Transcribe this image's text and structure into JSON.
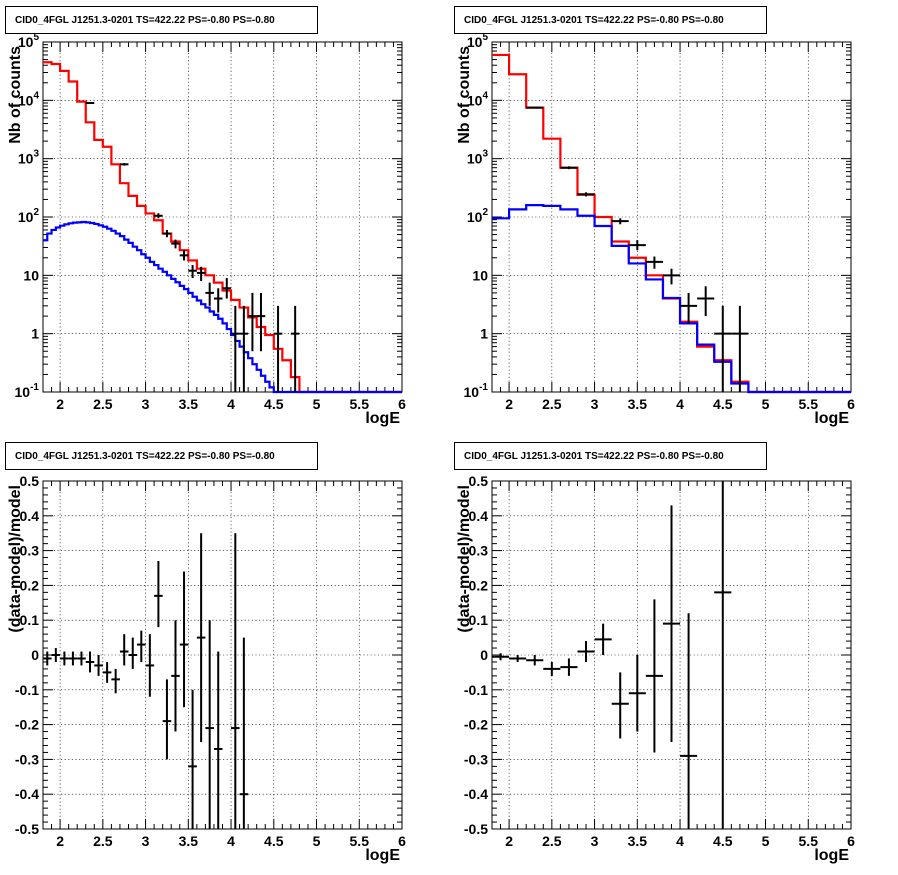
{
  "chart_data": [
    {
      "type": "line",
      "title": "CID0_4FGL J1251.3-0201 TS=422.22 PS=-0.80 PS=-0.80",
      "xlabel": "logE",
      "ylabel": "Nb of counts",
      "yscale": "log",
      "xlim": [
        1.8,
        6.0
      ],
      "ylim": [
        0.1,
        100000
      ],
      "grid": true,
      "x_ticks": [
        "2",
        "2.5",
        "3",
        "3.5",
        "4",
        "4.5",
        "5",
        "5.5",
        "6"
      ],
      "y_ticks": [
        "10^-1",
        "1",
        "10",
        "10^2",
        "10^3",
        "10^4",
        "10^5"
      ],
      "bin_width": 0.1,
      "series": [
        {
          "color": "#ff0000",
          "kind": "step",
          "x": [
            1.85,
            1.95,
            2.05,
            2.15,
            2.25,
            2.35,
            2.45,
            2.55,
            2.65,
            2.75,
            2.85,
            2.95,
            3.05,
            3.15,
            3.25,
            3.35,
            3.45,
            3.55,
            3.65,
            3.75,
            3.85,
            3.95,
            4.05,
            4.15,
            4.25,
            4.35,
            4.45,
            4.55,
            4.65,
            4.75,
            4.85,
            4.95,
            5.05,
            5.15,
            5.25,
            5.35,
            5.45,
            5.55,
            5.65,
            5.75,
            5.85,
            5.95
          ],
          "y": [
            45000,
            42000,
            32000,
            21000,
            9500,
            4200,
            2100,
            1600,
            800,
            380,
            230,
            155,
            115,
            88,
            52,
            38,
            27,
            18,
            13,
            10,
            7.5,
            5.5,
            3.8,
            2.8,
            1.9,
            1.3,
            0.95,
            0.55,
            0.35,
            0.18,
            0.1,
            0.1,
            0.1,
            0.1,
            0.1,
            0.1,
            0.1,
            0.1,
            0.1,
            0.1,
            0.1,
            0.1
          ]
        },
        {
          "color": "#0000ff",
          "kind": "step",
          "x": [
            1.825,
            1.875,
            1.925,
            1.975,
            2.025,
            2.075,
            2.125,
            2.175,
            2.225,
            2.275,
            2.325,
            2.375,
            2.425,
            2.475,
            2.525,
            2.575,
            2.625,
            2.675,
            2.725,
            2.775,
            2.825,
            2.875,
            2.925,
            2.975,
            3.025,
            3.075,
            3.125,
            3.175,
            3.225,
            3.275,
            3.325,
            3.375,
            3.425,
            3.475,
            3.525,
            3.575,
            3.625,
            3.675,
            3.725,
            3.775,
            3.825,
            3.875,
            3.925,
            3.975,
            4.025,
            4.075,
            4.125,
            4.175,
            4.225,
            4.275,
            4.325,
            4.375,
            4.425,
            4.475,
            4.525,
            4.575,
            4.625,
            4.675,
            4.725,
            4.775,
            4.825,
            4.875,
            4.925,
            4.975,
            5.025,
            5.075,
            5.125,
            5.175,
            5.225,
            5.275,
            5.325,
            5.375,
            5.425,
            5.475,
            5.525,
            5.575,
            5.625,
            5.675,
            5.725,
            5.775,
            5.825,
            5.875,
            5.925,
            5.975
          ],
          "y": [
            40,
            52,
            60,
            66,
            71,
            75,
            78,
            80,
            81,
            82,
            81,
            79,
            76,
            72,
            68,
            63,
            58,
            52,
            47,
            41,
            36,
            31,
            27,
            23,
            20,
            17,
            15,
            13,
            11.5,
            10,
            8.7,
            7.6,
            6.6,
            5.8,
            5,
            4.3,
            3.7,
            3.2,
            2.8,
            2.4,
            2.1,
            1.8,
            1.5,
            1.2,
            0.95,
            0.75,
            0.6,
            0.48,
            0.38,
            0.3,
            0.24,
            0.19,
            0.15,
            0.12,
            0.1,
            0.1,
            0.1,
            0.1,
            0.1,
            0.1,
            0.1,
            0.1,
            0.1,
            0.1,
            0.1,
            0.1,
            0.1,
            0.1,
            0.1,
            0.1,
            0.1,
            0.1,
            0.1,
            0.1,
            0.1,
            0.1,
            0.1,
            0.1,
            0.1,
            0.1,
            0.1,
            0.1,
            0.1,
            0.1
          ]
        }
      ],
      "data_points": [
        {
          "x": 2.35,
          "y": 9000,
          "xerr": 0.05,
          "ylo": 8800,
          "yhi": 9200
        },
        {
          "x": 2.75,
          "y": 800,
          "xerr": 0.05,
          "ylo": 760,
          "yhi": 840
        },
        {
          "x": 3.15,
          "y": 105,
          "xerr": 0.05,
          "ylo": 95,
          "yhi": 116
        },
        {
          "x": 3.25,
          "y": 52,
          "xerr": 0.05,
          "ylo": 45,
          "yhi": 60
        },
        {
          "x": 3.35,
          "y": 35,
          "xerr": 0.05,
          "ylo": 29,
          "yhi": 41
        },
        {
          "x": 3.45,
          "y": 22,
          "xerr": 0.05,
          "ylo": 18,
          "yhi": 27
        },
        {
          "x": 3.55,
          "y": 12,
          "xerr": 0.05,
          "ylo": 9,
          "yhi": 15
        },
        {
          "x": 3.65,
          "y": 11,
          "xerr": 0.05,
          "ylo": 8,
          "yhi": 14
        },
        {
          "x": 3.75,
          "y": 5,
          "xerr": 0.05,
          "ylo": 3,
          "yhi": 7.5
        },
        {
          "x": 3.85,
          "y": 4,
          "xerr": 0.05,
          "ylo": 2.3,
          "yhi": 6
        },
        {
          "x": 3.95,
          "y": 6,
          "xerr": 0.05,
          "ylo": 4,
          "yhi": 9
        },
        {
          "x": 4.05,
          "y": 1,
          "xerr": 0.05,
          "ylo": 0.1,
          "yhi": 3
        },
        {
          "x": 4.15,
          "y": 1,
          "xerr": 0.05,
          "ylo": 0.1,
          "yhi": 3
        },
        {
          "x": 4.25,
          "y": 2,
          "xerr": 0.05,
          "ylo": 0.5,
          "yhi": 5
        },
        {
          "x": 4.35,
          "y": 2,
          "xerr": 0.05,
          "ylo": 0.5,
          "yhi": 5
        },
        {
          "x": 4.55,
          "y": 1,
          "xerr": 0.05,
          "ylo": 0.1,
          "yhi": 3
        },
        {
          "x": 4.75,
          "y": 1,
          "xerr": 0.05,
          "ylo": 0.1,
          "yhi": 3
        }
      ]
    },
    {
      "type": "line",
      "title": "CID0_4FGL J1251.3-0201 TS=422.22 PS=-0.80 PS=-0.80",
      "xlabel": "logE",
      "ylabel": "Nb of counts",
      "yscale": "log",
      "xlim": [
        1.8,
        6.0
      ],
      "ylim": [
        0.1,
        100000
      ],
      "grid": true,
      "x_ticks": [
        "2",
        "2.5",
        "3",
        "3.5",
        "4",
        "4.5",
        "5",
        "5.5",
        "6"
      ],
      "y_ticks": [
        "10^-1",
        "1",
        "10",
        "10^2",
        "10^3",
        "10^4",
        "10^5"
      ],
      "bin_width": 0.2,
      "series": [
        {
          "color": "#ff0000",
          "kind": "step",
          "x": [
            1.9,
            2.1,
            2.3,
            2.5,
            2.7,
            2.9,
            3.1,
            3.3,
            3.5,
            3.7,
            3.9,
            4.1,
            4.3,
            4.5,
            4.7,
            4.9,
            5.1,
            5.3,
            5.5,
            5.7,
            5.9
          ],
          "y": [
            60000,
            28000,
            7500,
            2200,
            700,
            240,
            100,
            38,
            20,
            10,
            4,
            1.6,
            0.6,
            0.35,
            0.15,
            0.1,
            0.1,
            0.1,
            0.1,
            0.1,
            0.1
          ]
        },
        {
          "color": "#0000ff",
          "kind": "step",
          "x": [
            1.9,
            2.1,
            2.3,
            2.5,
            2.7,
            2.9,
            3.1,
            3.3,
            3.5,
            3.7,
            3.9,
            4.1,
            4.3,
            4.5,
            4.7,
            4.9,
            5.1,
            5.3,
            5.5,
            5.7,
            5.9
          ],
          "y": [
            95,
            135,
            160,
            155,
            135,
            105,
            70,
            32,
            16,
            8.5,
            4.1,
            1.5,
            0.65,
            0.33,
            0.14,
            0.1,
            0.1,
            0.1,
            0.1,
            0.1,
            0.1
          ]
        }
      ],
      "data_points": [
        {
          "x": 2.3,
          "y": 7500,
          "xerr": 0.1,
          "ylo": 7300,
          "yhi": 7700
        },
        {
          "x": 2.7,
          "y": 700,
          "xerr": 0.1,
          "ylo": 660,
          "yhi": 740
        },
        {
          "x": 2.9,
          "y": 245,
          "xerr": 0.1,
          "ylo": 225,
          "yhi": 265
        },
        {
          "x": 3.3,
          "y": 85,
          "xerr": 0.1,
          "ylo": 75,
          "yhi": 95
        },
        {
          "x": 3.5,
          "y": 33,
          "xerr": 0.1,
          "ylo": 27,
          "yhi": 40
        },
        {
          "x": 3.7,
          "y": 17,
          "xerr": 0.1,
          "ylo": 13,
          "yhi": 21
        },
        {
          "x": 3.9,
          "y": 10,
          "xerr": 0.1,
          "ylo": 7,
          "yhi": 13
        },
        {
          "x": 4.1,
          "y": 3,
          "xerr": 0.1,
          "ylo": 1.5,
          "yhi": 5
        },
        {
          "x": 4.3,
          "y": 4,
          "xerr": 0.1,
          "ylo": 2,
          "yhi": 6.5
        },
        {
          "x": 4.5,
          "y": 1,
          "xerr": 0.1,
          "ylo": 0.1,
          "yhi": 3
        },
        {
          "x": 4.7,
          "y": 1,
          "xerr": 0.1,
          "ylo": 0.1,
          "yhi": 3
        }
      ]
    },
    {
      "type": "scatter",
      "title": "CID0_4FGL J1251.3-0201 TS=422.22 PS=-0.80 PS=-0.80",
      "xlabel": "logE",
      "ylabel": "(data-model)/model",
      "xlim": [
        1.8,
        6.0
      ],
      "ylim": [
        -0.5,
        0.5
      ],
      "grid": true,
      "x_ticks": [
        "2",
        "2.5",
        "3",
        "3.5",
        "4",
        "4.5",
        "5",
        "5.5",
        "6"
      ],
      "y_ticks": [
        "-0.5",
        "-0.4",
        "-0.3",
        "-0.2",
        "-0.1",
        "0",
        "0.1",
        "0.2",
        "0.3",
        "0.4",
        "0.5"
      ],
      "points": [
        {
          "x": 1.85,
          "y": -0.01,
          "xerr": 0.05,
          "ylo": -0.03,
          "yhi": 0.01
        },
        {
          "x": 1.95,
          "y": 0.0,
          "xerr": 0.05,
          "ylo": -0.02,
          "yhi": 0.02
        },
        {
          "x": 2.05,
          "y": -0.01,
          "xerr": 0.05,
          "ylo": -0.03,
          "yhi": 0.01
        },
        {
          "x": 2.15,
          "y": -0.01,
          "xerr": 0.05,
          "ylo": -0.03,
          "yhi": 0.01
        },
        {
          "x": 2.25,
          "y": -0.01,
          "xerr": 0.05,
          "ylo": -0.03,
          "yhi": 0.01
        },
        {
          "x": 2.35,
          "y": -0.02,
          "xerr": 0.05,
          "ylo": -0.05,
          "yhi": 0.01
        },
        {
          "x": 2.45,
          "y": -0.03,
          "xerr": 0.05,
          "ylo": -0.06,
          "yhi": 0.0
        },
        {
          "x": 2.55,
          "y": -0.05,
          "xerr": 0.05,
          "ylo": -0.08,
          "yhi": -0.02
        },
        {
          "x": 2.65,
          "y": -0.07,
          "xerr": 0.05,
          "ylo": -0.11,
          "yhi": -0.04
        },
        {
          "x": 2.75,
          "y": 0.01,
          "xerr": 0.05,
          "ylo": -0.03,
          "yhi": 0.06
        },
        {
          "x": 2.85,
          "y": 0.0,
          "xerr": 0.05,
          "ylo": -0.04,
          "yhi": 0.05
        },
        {
          "x": 2.95,
          "y": 0.03,
          "xerr": 0.05,
          "ylo": -0.02,
          "yhi": 0.07
        },
        {
          "x": 3.05,
          "y": -0.03,
          "xerr": 0.05,
          "ylo": -0.12,
          "yhi": 0.06
        },
        {
          "x": 3.15,
          "y": 0.17,
          "xerr": 0.05,
          "ylo": 0.08,
          "yhi": 0.27
        },
        {
          "x": 3.25,
          "y": -0.19,
          "xerr": 0.05,
          "ylo": -0.3,
          "yhi": -0.07
        },
        {
          "x": 3.35,
          "y": -0.06,
          "xerr": 0.05,
          "ylo": -0.22,
          "yhi": 0.1
        },
        {
          "x": 3.45,
          "y": 0.03,
          "xerr": 0.05,
          "ylo": -0.15,
          "yhi": 0.24
        },
        {
          "x": 3.55,
          "y": -0.32,
          "xerr": 0.05,
          "ylo": -0.5,
          "yhi": -0.1
        },
        {
          "x": 3.65,
          "y": 0.05,
          "xerr": 0.05,
          "ylo": -0.25,
          "yhi": 0.35
        },
        {
          "x": 3.75,
          "y": -0.21,
          "xerr": 0.05,
          "ylo": -0.5,
          "yhi": 0.1
        },
        {
          "x": 3.85,
          "y": -0.27,
          "xerr": 0.05,
          "ylo": -0.5,
          "yhi": 0.01
        },
        {
          "x": 4.05,
          "y": -0.21,
          "xerr": 0.05,
          "ylo": -0.5,
          "yhi": 0.35
        },
        {
          "x": 4.15,
          "y": -0.4,
          "xerr": 0.05,
          "ylo": -0.5,
          "yhi": 0.05
        }
      ]
    },
    {
      "type": "scatter",
      "title": "CID0_4FGL J1251.3-0201 TS=422.22 PS=-0.80 PS=-0.80",
      "xlabel": "logE",
      "ylabel": "(data-model)/model",
      "xlim": [
        1.8,
        6.0
      ],
      "ylim": [
        -0.5,
        0.5
      ],
      "grid": true,
      "x_ticks": [
        "2",
        "2.5",
        "3",
        "3.5",
        "4",
        "4.5",
        "5",
        "5.5",
        "6"
      ],
      "y_ticks": [
        "-0.5",
        "-0.4",
        "-0.3",
        "-0.2",
        "-0.1",
        "0",
        "0.1",
        "0.2",
        "0.3",
        "0.4",
        "0.5"
      ],
      "points": [
        {
          "x": 1.9,
          "y": -0.005,
          "xerr": 0.1,
          "ylo": -0.015,
          "yhi": 0.005
        },
        {
          "x": 2.1,
          "y": -0.01,
          "xerr": 0.1,
          "ylo": -0.02,
          "yhi": 0.0
        },
        {
          "x": 2.3,
          "y": -0.015,
          "xerr": 0.1,
          "ylo": -0.03,
          "yhi": 0.0
        },
        {
          "x": 2.5,
          "y": -0.04,
          "xerr": 0.1,
          "ylo": -0.06,
          "yhi": -0.02
        },
        {
          "x": 2.7,
          "y": -0.035,
          "xerr": 0.1,
          "ylo": -0.06,
          "yhi": -0.01
        },
        {
          "x": 2.9,
          "y": 0.01,
          "xerr": 0.1,
          "ylo": -0.02,
          "yhi": 0.04
        },
        {
          "x": 3.1,
          "y": 0.045,
          "xerr": 0.1,
          "ylo": 0.0,
          "yhi": 0.09
        },
        {
          "x": 3.3,
          "y": -0.14,
          "xerr": 0.1,
          "ylo": -0.24,
          "yhi": -0.05
        },
        {
          "x": 3.5,
          "y": -0.11,
          "xerr": 0.1,
          "ylo": -0.22,
          "yhi": 0.0
        },
        {
          "x": 3.7,
          "y": -0.06,
          "xerr": 0.1,
          "ylo": -0.28,
          "yhi": 0.16
        },
        {
          "x": 3.9,
          "y": 0.09,
          "xerr": 0.1,
          "ylo": -0.25,
          "yhi": 0.43
        },
        {
          "x": 4.1,
          "y": -0.29,
          "xerr": 0.1,
          "ylo": -0.5,
          "yhi": 0.12
        },
        {
          "x": 4.5,
          "y": 0.18,
          "xerr": 0.1,
          "ylo": -0.5,
          "yhi": 0.5
        }
      ]
    }
  ]
}
